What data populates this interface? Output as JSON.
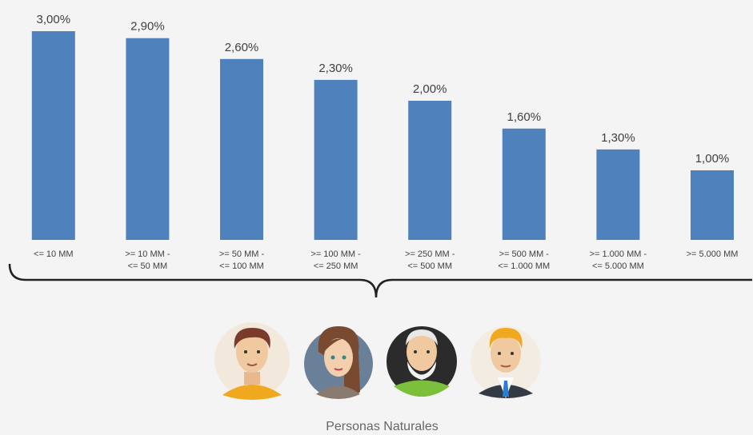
{
  "chart_data": {
    "type": "bar",
    "categories": [
      "<= 10 MM",
      ">= 10 MM  -\n<= 50 MM",
      ">= 50 MM -\n<= 100 MM",
      ">= 100 MM -\n<= 250 MM",
      ">= 250 MM -\n<= 500 MM",
      ">= 500 MM -\n<= 1.000 MM",
      ">= 1.000 MM -\n<= 5.000 MM",
      ">= 5.000 MM"
    ],
    "values": [
      3.0,
      2.9,
      2.6,
      2.3,
      2.0,
      1.6,
      1.3,
      1.0
    ],
    "value_labels": [
      "3,00%",
      "2,90%",
      "2,60%",
      "2,30%",
      "2,00%",
      "1,60%",
      "1,30%",
      "1,00%"
    ],
    "color": "#4f81bd",
    "caption": "Personas Naturales"
  }
}
